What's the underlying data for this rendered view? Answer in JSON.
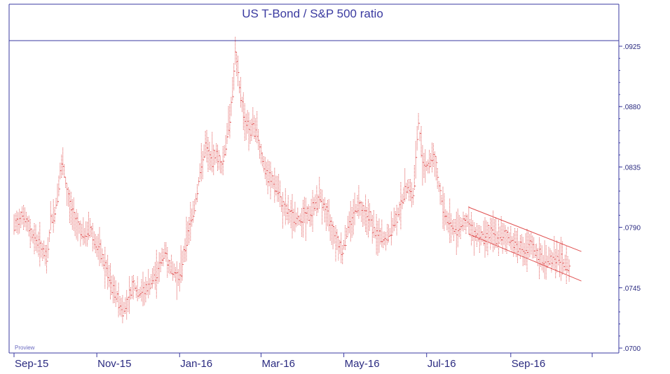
{
  "chart_data": {
    "type": "line",
    "title": "US T-Bond / S&P 500 ratio",
    "watermark": "Proview",
    "y_ticks": [
      ".0925",
      ".0880",
      ".0835",
      ".0790",
      ".0745",
      ".0700"
    ],
    "ylim": [
      0.07,
      0.0925
    ],
    "x_tick_labels": [
      "Sep-15",
      "Nov-15",
      "Jan-16",
      "Mar-16",
      "May-16",
      "Jul-16",
      "Sep-16"
    ],
    "grid": false,
    "colors": {
      "series": "#e05050",
      "channel": "#e05050",
      "axis": "#3a3aa0",
      "text": "#2a2a80"
    },
    "x_start": "2015-09-01",
    "x_end": "2016-10-31",
    "series": [
      {
        "points": [
          [
            "2015-09-01",
            0.079
          ],
          [
            "2015-09-07",
            0.08
          ],
          [
            "2015-09-14",
            0.0785
          ],
          [
            "2015-09-21",
            0.0775
          ],
          [
            "2015-09-25",
            0.0765
          ],
          [
            "2015-09-28",
            0.0795
          ],
          [
            "2015-10-01",
            0.08
          ],
          [
            "2015-10-05",
            0.083
          ],
          [
            "2015-10-07",
            0.0837
          ],
          [
            "2015-10-10",
            0.0815
          ],
          [
            "2015-10-14",
            0.08
          ],
          [
            "2015-10-19",
            0.079
          ],
          [
            "2015-10-23",
            0.0782
          ],
          [
            "2015-10-27",
            0.079
          ],
          [
            "2015-10-31",
            0.0778
          ],
          [
            "2015-11-04",
            0.077
          ],
          [
            "2015-11-08",
            0.0758
          ],
          [
            "2015-11-12",
            0.0745
          ],
          [
            "2015-11-16",
            0.0738
          ],
          [
            "2015-11-20",
            0.0728
          ],
          [
            "2015-11-24",
            0.0735
          ],
          [
            "2015-11-28",
            0.0748
          ],
          [
            "2015-12-01",
            0.074
          ],
          [
            "2015-12-05",
            0.0742
          ],
          [
            "2015-12-09",
            0.0745
          ],
          [
            "2015-12-13",
            0.0752
          ],
          [
            "2015-12-17",
            0.076
          ],
          [
            "2015-12-21",
            0.0772
          ],
          [
            "2015-12-25",
            0.076
          ],
          [
            "2015-12-29",
            0.0755
          ],
          [
            "2016-01-01",
            0.0752
          ],
          [
            "2016-01-04",
            0.077
          ],
          [
            "2016-01-08",
            0.079
          ],
          [
            "2016-01-12",
            0.0805
          ],
          [
            "2016-01-16",
            0.083
          ],
          [
            "2016-01-20",
            0.085
          ],
          [
            "2016-01-24",
            0.084
          ],
          [
            "2016-01-28",
            0.0845
          ],
          [
            "2016-02-01",
            0.0835
          ],
          [
            "2016-02-05",
            0.0858
          ],
          [
            "2016-02-09",
            0.089
          ],
          [
            "2016-02-11",
            0.0918
          ],
          [
            "2016-02-14",
            0.0895
          ],
          [
            "2016-02-18",
            0.087
          ],
          [
            "2016-02-22",
            0.0862
          ],
          [
            "2016-02-26",
            0.0865
          ],
          [
            "2016-03-01",
            0.0845
          ],
          [
            "2016-03-05",
            0.0828
          ],
          [
            "2016-03-09",
            0.0825
          ],
          [
            "2016-03-13",
            0.0818
          ],
          [
            "2016-03-17",
            0.0805
          ],
          [
            "2016-03-21",
            0.08
          ],
          [
            "2016-03-25",
            0.0797
          ],
          [
            "2016-03-29",
            0.0795
          ],
          [
            "2016-04-02",
            0.08
          ],
          [
            "2016-04-06",
            0.0798
          ],
          [
            "2016-04-10",
            0.0808
          ],
          [
            "2016-04-14",
            0.0812
          ],
          [
            "2016-04-18",
            0.08
          ],
          [
            "2016-04-22",
            0.079
          ],
          [
            "2016-04-26",
            0.078
          ],
          [
            "2016-04-30",
            0.0772
          ],
          [
            "2016-05-04",
            0.079
          ],
          [
            "2016-05-08",
            0.08
          ],
          [
            "2016-05-12",
            0.0808
          ],
          [
            "2016-05-16",
            0.08
          ],
          [
            "2016-05-20",
            0.0798
          ],
          [
            "2016-05-24",
            0.0785
          ],
          [
            "2016-05-28",
            0.0782
          ],
          [
            "2016-06-01",
            0.078
          ],
          [
            "2016-06-05",
            0.0788
          ],
          [
            "2016-06-09",
            0.0798
          ],
          [
            "2016-06-13",
            0.081
          ],
          [
            "2016-06-17",
            0.0822
          ],
          [
            "2016-06-21",
            0.0812
          ],
          [
            "2016-06-25",
            0.0868
          ],
          [
            "2016-06-28",
            0.084
          ],
          [
            "2016-07-02",
            0.0835
          ],
          [
            "2016-07-06",
            0.0845
          ],
          [
            "2016-07-10",
            0.082
          ],
          [
            "2016-07-14",
            0.08
          ],
          [
            "2016-07-18",
            0.0792
          ],
          [
            "2016-07-22",
            0.0788
          ],
          [
            "2016-07-26",
            0.0792
          ],
          [
            "2016-07-30",
            0.0795
          ],
          [
            "2016-08-03",
            0.0788
          ],
          [
            "2016-08-07",
            0.0785
          ],
          [
            "2016-08-11",
            0.0783
          ],
          [
            "2016-08-15",
            0.0786
          ],
          [
            "2016-08-19",
            0.0785
          ],
          [
            "2016-08-23",
            0.0782
          ],
          [
            "2016-08-27",
            0.0784
          ],
          [
            "2016-08-31",
            0.0781
          ],
          [
            "2016-09-04",
            0.0778
          ],
          [
            "2016-09-08",
            0.0776
          ],
          [
            "2016-09-12",
            0.077
          ],
          [
            "2016-09-16",
            0.0777
          ],
          [
            "2016-09-20",
            0.077
          ],
          [
            "2016-09-24",
            0.0765
          ],
          [
            "2016-09-28",
            0.0765
          ],
          [
            "2016-10-02",
            0.0767
          ],
          [
            "2016-10-06",
            0.0766
          ],
          [
            "2016-10-10",
            0.0763
          ],
          [
            "2016-10-14",
            0.076
          ]
        ]
      }
    ],
    "channel_lines": [
      {
        "from": [
          "2016-08-01",
          0.0805
        ],
        "to": [
          "2016-10-23",
          0.0772
        ]
      },
      {
        "from": [
          "2016-08-01",
          0.0785
        ],
        "to": [
          "2016-10-23",
          0.075
        ]
      }
    ]
  }
}
